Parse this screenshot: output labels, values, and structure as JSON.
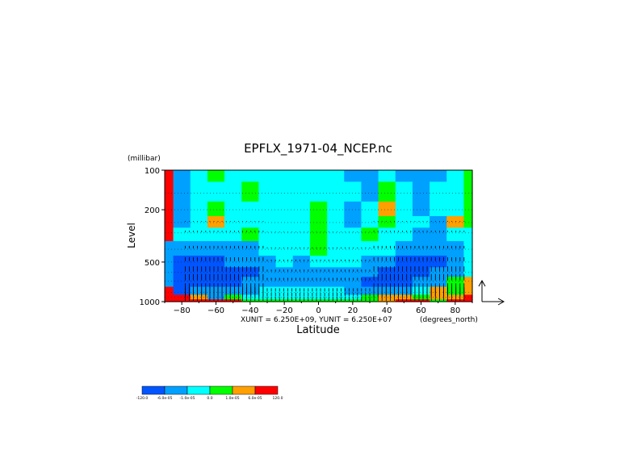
{
  "chart_data": {
    "type": "heatmap",
    "title": "EPFLX_1971-04_NCEP.nc",
    "xlabel": "Latitude",
    "ylabel": "Level",
    "y_unit": "(millibar)",
    "x_unit": "(degrees_north)",
    "vector_units": "XUNIT = 6.250E+09, YUNIT = 6.250E+07",
    "x_ticks": [
      -80,
      -60,
      -40,
      -20,
      0,
      20,
      40,
      60,
      80
    ],
    "y_ticks": [
      100,
      200,
      500,
      1000
    ],
    "xlim": [
      -90,
      90
    ],
    "ylim": [
      1000,
      100
    ],
    "y_scale": "log",
    "grid": "dotted pressure levels",
    "colorbar": {
      "labels": [
        "-120.0",
        "-6.0e-05",
        "-1.0e-05",
        "0.0",
        "1.0e-05",
        "6.0e-05",
        "120.0"
      ],
      "colors": [
        "#0055ff",
        "#00a0ff",
        "#00ffff",
        "#00ff00",
        "#ffa000",
        "#ff0000"
      ]
    },
    "field": {
      "x": [
        -90,
        -80,
        -70,
        -60,
        -50,
        -40,
        -30,
        -20,
        -10,
        0,
        10,
        20,
        30,
        40,
        50,
        60,
        70,
        80,
        90
      ],
      "levels": [
        100,
        150,
        200,
        250,
        300,
        400,
        500,
        600,
        700,
        850,
        925,
        1000
      ],
      "class_index": [
        [
          5,
          1,
          2,
          3,
          2,
          2,
          2,
          2,
          2,
          2,
          2,
          1,
          1,
          2,
          1,
          1,
          1,
          2,
          3
        ],
        [
          5,
          1,
          2,
          2,
          2,
          3,
          2,
          2,
          2,
          2,
          2,
          2,
          1,
          3,
          2,
          1,
          2,
          2,
          3
        ],
        [
          5,
          1,
          2,
          3,
          2,
          2,
          2,
          2,
          2,
          3,
          2,
          1,
          2,
          4,
          2,
          1,
          2,
          2,
          3
        ],
        [
          5,
          1,
          2,
          4,
          2,
          2,
          2,
          2,
          2,
          3,
          2,
          1,
          2,
          3,
          2,
          2,
          1,
          4,
          3
        ],
        [
          5,
          2,
          2,
          2,
          2,
          3,
          2,
          2,
          2,
          3,
          2,
          2,
          3,
          2,
          2,
          1,
          1,
          2,
          2
        ],
        [
          1,
          1,
          1,
          1,
          1,
          1,
          2,
          2,
          2,
          3,
          2,
          2,
          2,
          2,
          1,
          1,
          1,
          1,
          2
        ],
        [
          1,
          0,
          0,
          0,
          1,
          1,
          1,
          2,
          1,
          2,
          2,
          2,
          1,
          1,
          0,
          0,
          0,
          1,
          2
        ],
        [
          1,
          0,
          0,
          0,
          0,
          0,
          1,
          1,
          1,
          1,
          1,
          1,
          1,
          0,
          0,
          0,
          1,
          1,
          2
        ],
        [
          1,
          0,
          0,
          0,
          0,
          1,
          1,
          1,
          1,
          1,
          1,
          1,
          0,
          0,
          0,
          1,
          1,
          3,
          4
        ],
        [
          5,
          0,
          1,
          1,
          1,
          1,
          2,
          2,
          2,
          2,
          2,
          1,
          1,
          1,
          1,
          2,
          4,
          3,
          4
        ],
        [
          5,
          5,
          4,
          1,
          3,
          2,
          2,
          2,
          2,
          2,
          2,
          2,
          3,
          4,
          4,
          3,
          4,
          4,
          5
        ],
        [
          5,
          5,
          5,
          5,
          5,
          3,
          3,
          3,
          3,
          3,
          3,
          3,
          3,
          4,
          5,
          5,
          3,
          5,
          5
        ]
      ]
    }
  }
}
